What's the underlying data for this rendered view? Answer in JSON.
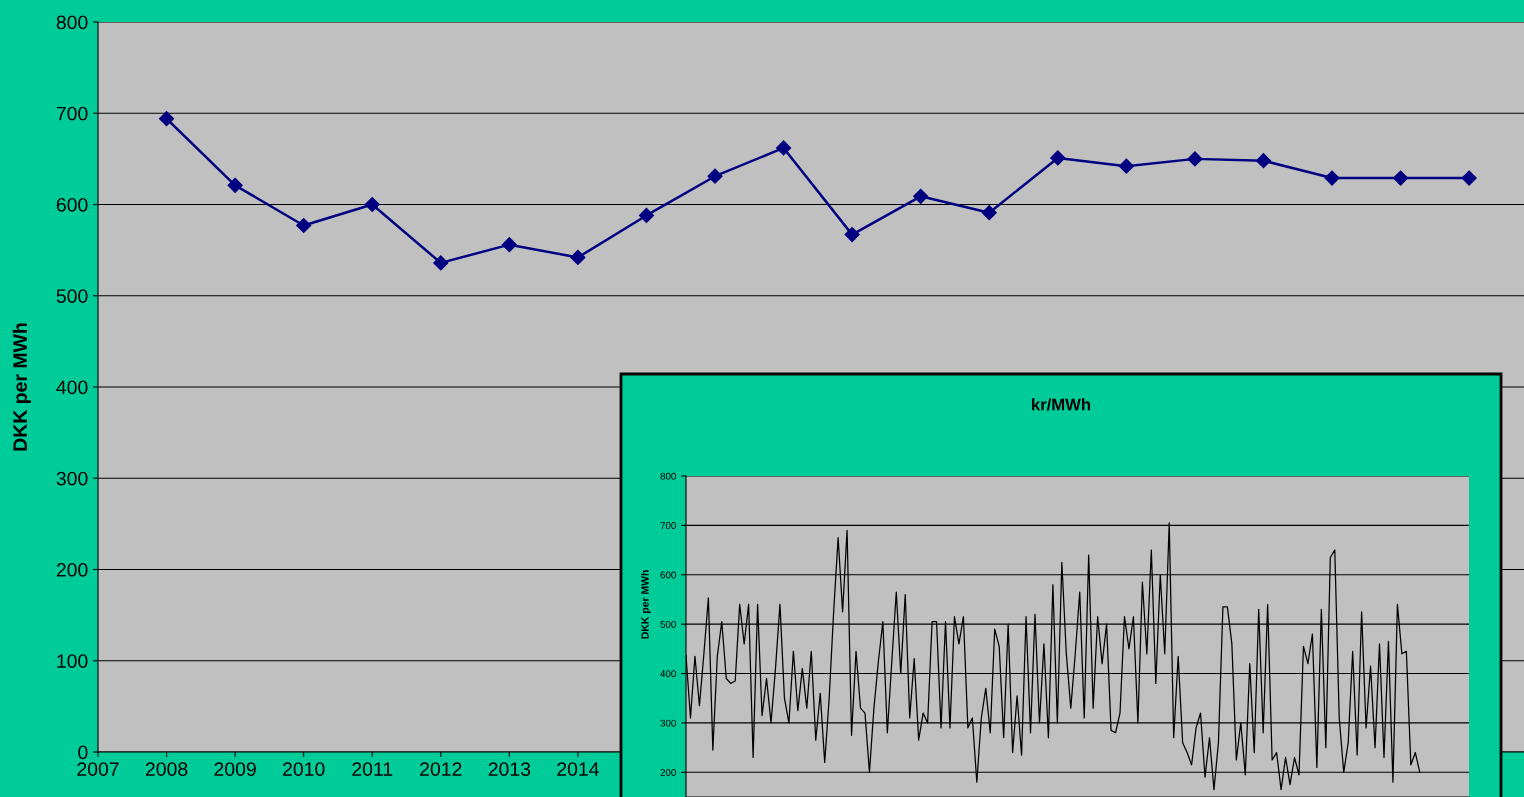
{
  "chart_data": [
    {
      "type": "line",
      "ylabel": "DKK per MWh",
      "x": [
        2008,
        2009,
        2010,
        2011,
        2012,
        2013,
        2014,
        2015,
        2016,
        2017,
        2018,
        2019,
        2020,
        2021,
        2022,
        2023,
        2024,
        2025,
        2026,
        2027
      ],
      "series": [
        {
          "color": "#000080",
          "values": [
            694,
            621,
            577,
            600,
            536,
            556,
            542,
            588,
            631,
            662,
            567,
            609,
            591,
            651,
            642,
            650,
            648,
            629,
            629,
            629
          ]
        }
      ],
      "xlim": [
        2007,
        2027.8
      ],
      "xticks": [
        2007,
        2008,
        2009,
        2010,
        2011,
        2012,
        2013,
        2014
      ],
      "ylim": [
        0,
        800
      ],
      "yticks": [
        0,
        100,
        200,
        300,
        400,
        500,
        600,
        700,
        800
      ],
      "grid": "y",
      "marker": "diamond",
      "line_style": "solid",
      "legend": false
    },
    {
      "type": "line",
      "title": "kr/MWh",
      "ylabel": "DKK per MWh",
      "categories": [
        null,
        null,
        null,
        null,
        null,
        null,
        null,
        null,
        null,
        null,
        null,
        null,
        null,
        null,
        null,
        null,
        null,
        null,
        null,
        null,
        null,
        null,
        null,
        null,
        null,
        null,
        null,
        null,
        null,
        null,
        null,
        null,
        null,
        null,
        null,
        null,
        null,
        null,
        null,
        null,
        null,
        null,
        null,
        null,
        null,
        null,
        null,
        null,
        null,
        null,
        null,
        null,
        null,
        null,
        null,
        null,
        null,
        null,
        null,
        null,
        null,
        null,
        null,
        null,
        null,
        null,
        null,
        null,
        null,
        null,
        null,
        null,
        null,
        null,
        null,
        null,
        null,
        null,
        null,
        null,
        null,
        null,
        null,
        null,
        null,
        null,
        null,
        null,
        null,
        null,
        null,
        null,
        null,
        null,
        null,
        null,
        null,
        null,
        null,
        null,
        null,
        null,
        null,
        null,
        null,
        null,
        null,
        null,
        null,
        null,
        null,
        null,
        null,
        null,
        null,
        null,
        null,
        null,
        null,
        null,
        null,
        null,
        null,
        null,
        null,
        null,
        null,
        null,
        null,
        null,
        null,
        null,
        null,
        null,
        null,
        null,
        null,
        null,
        null,
        null,
        null,
        null,
        null,
        null,
        null,
        null,
        null,
        null,
        null,
        null,
        null,
        null,
        null,
        null,
        null,
        null,
        null,
        null,
        null,
        null,
        null,
        null,
        null,
        null,
        null,
        null,
        null,
        null,
        null,
        null,
        null,
        null,
        null,
        null,
        null,
        null
      ],
      "series": [
        {
          "color": "#000000",
          "values": [
            437,
            310,
            435,
            335,
            440,
            553,
            245,
            435,
            505,
            390,
            380,
            385,
            540,
            460,
            540,
            230,
            540,
            315,
            390,
            300,
            410,
            540,
            350,
            300,
            445,
            325,
            410,
            330,
            445,
            265,
            360,
            220,
            350,
            525,
            675,
            525,
            690,
            275,
            445,
            330,
            320,
            200,
            330,
            425,
            505,
            280,
            425,
            565,
            400,
            560,
            310,
            430,
            265,
            320,
            300,
            505,
            505,
            290,
            505,
            290,
            515,
            460,
            515,
            290,
            310,
            180,
            310,
            370,
            280,
            490,
            455,
            270,
            500,
            240,
            355,
            235,
            515,
            280,
            520,
            300,
            460,
            270,
            580,
            300,
            625,
            440,
            330,
            440,
            565,
            310,
            640,
            330,
            515,
            420,
            500,
            285,
            280,
            320,
            515,
            450,
            515,
            300,
            585,
            440,
            650,
            380,
            600,
            440,
            705,
            270,
            435,
            260,
            240,
            215,
            290,
            320,
            190,
            270,
            165,
            260,
            535,
            535,
            460,
            225,
            300,
            195,
            420,
            240,
            530,
            280,
            540,
            225,
            240,
            165,
            230,
            175,
            230,
            195,
            455,
            420,
            480,
            210,
            530,
            250,
            635,
            650,
            310,
            200,
            260,
            445,
            235,
            525,
            290,
            415,
            250,
            460,
            230,
            465,
            180,
            540,
            440,
            445,
            215,
            240,
            200,
            null,
            null,
            null,
            null,
            null,
            null,
            null,
            null,
            null,
            null,
            null
          ]
        }
      ],
      "ylim": [
        150,
        800
      ],
      "yticks": [
        200,
        300,
        400,
        500,
        600,
        700,
        800
      ],
      "grid": "y",
      "marker": "none",
      "line_style": "solid",
      "legend": false,
      "tick_labels": "y"
    }
  ]
}
